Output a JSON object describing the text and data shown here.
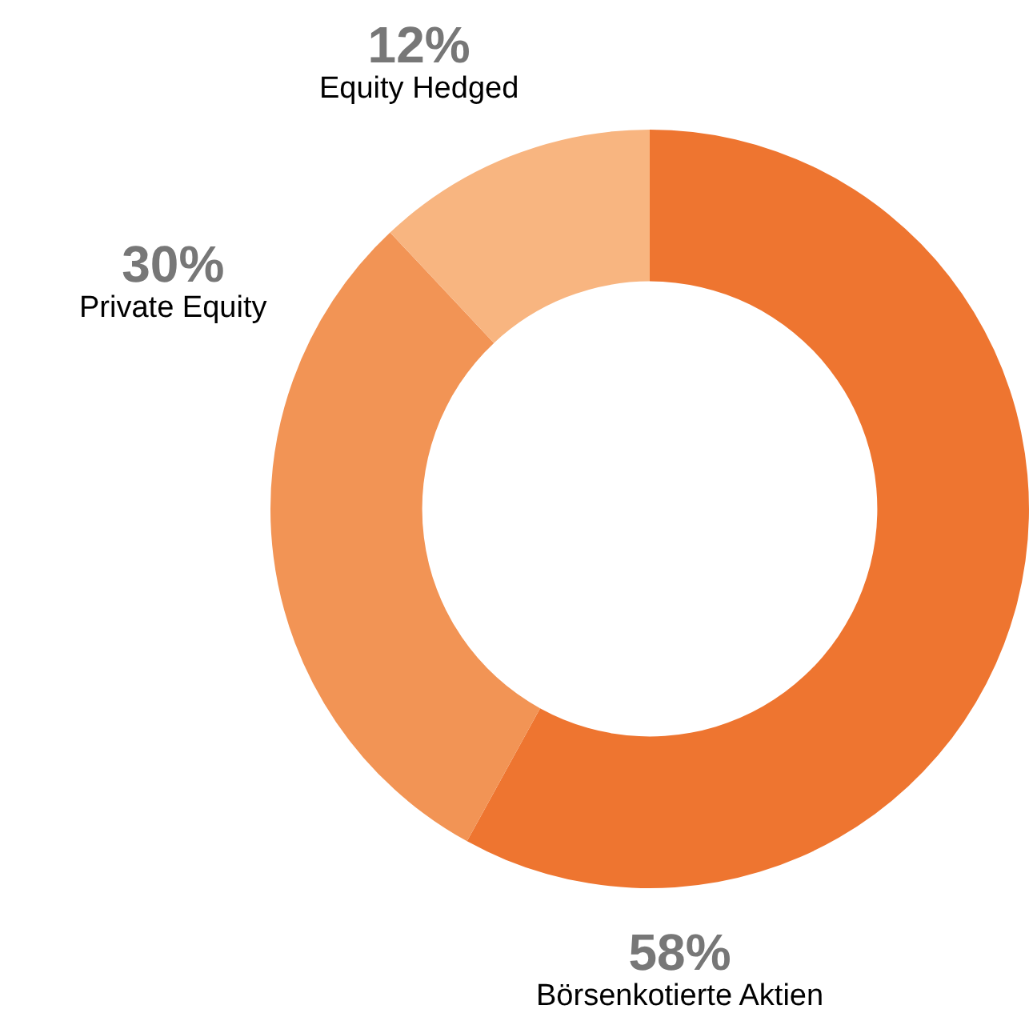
{
  "chart_data": {
    "type": "donut",
    "categories": [
      "Börsenkotierte Aktien",
      "Private Equity",
      "Equity Hedged"
    ],
    "values": [
      58,
      30,
      12
    ],
    "value_labels": [
      "58%",
      "30%",
      "12%"
    ],
    "colors": [
      "#ee7530",
      "#f29455",
      "#f8b580"
    ]
  }
}
